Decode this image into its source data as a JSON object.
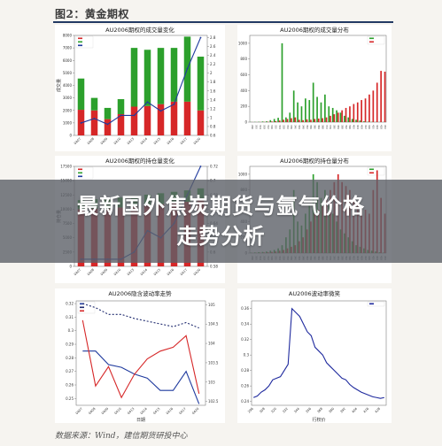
{
  "figure_title": "图2：黄金期权",
  "source": "数据来源：Wind，建信期货研投中心",
  "headline": {
    "line1": "最新国外焦炭期货与氩气价格",
    "line2": "走势分析"
  },
  "chart_data": [
    {
      "id": "volume-by-date",
      "type": "bar",
      "title": "AU2006期权的成交量变化",
      "xlabel": "",
      "ylabel": "成交量",
      "y2label": "",
      "legend": {
        "position": "top-left",
        "labels": [
          "",
          "",
          ""
        ]
      },
      "categories": [
        "0407",
        "0408",
        "0409",
        "0410",
        "0413",
        "0414",
        "0415",
        "0416",
        "0417",
        "0420"
      ],
      "series": [
        {
          "kind": "bar",
          "color": "#d62728",
          "values": [
            2050,
            2000,
            1300,
            1700,
            2300,
            2350,
            2500,
            2700,
            2700,
            2000
          ]
        },
        {
          "kind": "bar",
          "color": "#2ca02c",
          "values": [
            2500,
            1000,
            900,
            1200,
            4700,
            4500,
            4500,
            4300,
            5200,
            4300
          ]
        },
        {
          "kind": "line",
          "axis": "right",
          "color": "#1f3a9e",
          "values": [
            0.88,
            0.98,
            0.85,
            1.05,
            1.05,
            1.35,
            1.15,
            1.3,
            2.1,
            2.8
          ]
        }
      ],
      "yticks": [
        0,
        1000,
        2000,
        3000,
        4000,
        5000,
        6000,
        7000,
        8000
      ],
      "y2ticks": [
        0.6,
        0.8,
        1.0,
        1.2,
        1.4,
        1.6,
        1.8,
        2.0,
        2.2,
        2.4,
        2.6,
        2.8
      ],
      "ylim": [
        0,
        8000
      ],
      "y2lim": [
        0.6,
        2.85
      ]
    },
    {
      "id": "volume-by-strike",
      "type": "bar",
      "title": "AU2006期权的成交量分布",
      "xlabel": "",
      "ylabel": "",
      "legend": {
        "position": "top-right",
        "labels": [
          "",
          ""
        ]
      },
      "categories": [
        "296",
        "300",
        "304",
        "308",
        "312",
        "316",
        "320",
        "324",
        "328",
        "332",
        "336",
        "340",
        "344",
        "348",
        "352",
        "356",
        "360",
        "364",
        "368",
        "372",
        "376",
        "380",
        "384",
        "388",
        "392",
        "396",
        "400",
        "404",
        "408",
        "412",
        "416",
        "420",
        "424",
        "428",
        "432"
      ],
      "series": [
        {
          "color": "#2ca02c",
          "values": [
            2,
            3,
            4,
            8,
            10,
            25,
            40,
            55,
            1000,
            60,
            120,
            400,
            250,
            200,
            300,
            280,
            500,
            320,
            250,
            350,
            200,
            180,
            150,
            120,
            80,
            60,
            40,
            30,
            20,
            10,
            5,
            3,
            2,
            1,
            1
          ]
        },
        {
          "color": "#d62728",
          "values": [
            1,
            1,
            2,
            3,
            5,
            8,
            12,
            20,
            30,
            40,
            50,
            60,
            30,
            25,
            35,
            30,
            40,
            45,
            50,
            60,
            80,
            100,
            120,
            150,
            180,
            200,
            230,
            250,
            280,
            300,
            350,
            400,
            500,
            650,
            640
          ]
        }
      ],
      "yticks": [
        0,
        200,
        400,
        600,
        800,
        1000
      ],
      "ylim": [
        0,
        1100
      ]
    },
    {
      "id": "oi-by-date",
      "type": "bar",
      "title": "AU2006期权的持仓量变化",
      "xlabel": "",
      "ylabel": "持仓量",
      "y2label": "",
      "legend": {
        "position": "top-left",
        "labels": [
          "",
          "",
          ""
        ]
      },
      "categories": [
        "0407",
        "0408",
        "0409",
        "0410",
        "0413",
        "0414",
        "0415",
        "0416",
        "0417",
        "0420"
      ],
      "series": [
        {
          "kind": "bar",
          "color": "#d62728",
          "values": [
            10000,
            10100,
            10100,
            10300,
            10500,
            10700,
            10900,
            11100,
            11300,
            11600
          ]
        },
        {
          "kind": "bar",
          "color": "#2ca02c",
          "values": [
            1600,
            1650,
            1700,
            1750,
            1800,
            1850,
            1900,
            1950,
            2000,
            2050
          ]
        },
        {
          "kind": "line",
          "axis": "right",
          "color": "#1f3a9e",
          "values": [
            0.59,
            0.59,
            0.59,
            0.59,
            0.6,
            0.63,
            0.62,
            0.64,
            0.68,
            0.72
          ]
        }
      ],
      "yticks": [
        0,
        2500,
        5000,
        7500,
        10000,
        12500,
        15000,
        17500
      ],
      "y2ticks": [
        0.58,
        0.6,
        0.62,
        0.64,
        0.66,
        0.68,
        0.7,
        0.72
      ],
      "ylim": [
        0,
        17500
      ],
      "y2lim": [
        0.58,
        0.72
      ]
    },
    {
      "id": "oi-by-strike",
      "type": "bar",
      "title": "AU2006期权的持仓量分布",
      "xlabel": "",
      "ylabel": "",
      "legend": {
        "position": "top-right",
        "labels": [
          "",
          ""
        ]
      },
      "categories": [
        "296",
        "300",
        "304",
        "308",
        "312",
        "316",
        "320",
        "324",
        "328",
        "332",
        "336",
        "340",
        "344",
        "348",
        "352",
        "356",
        "360",
        "364",
        "368",
        "372",
        "376",
        "380",
        "384",
        "388",
        "392",
        "396",
        "400",
        "404",
        "408",
        "412",
        "416",
        "420",
        "424",
        "428",
        "432"
      ],
      "series": [
        {
          "color": "#2ca02c",
          "values": [
            5,
            8,
            12,
            15,
            20,
            30,
            40,
            60,
            100,
            200,
            300,
            800,
            400,
            350,
            500,
            600,
            1000,
            900,
            700,
            800,
            600,
            500,
            400,
            300,
            250,
            200,
            150,
            100,
            80,
            60,
            40,
            30,
            20,
            10,
            5
          ]
        },
        {
          "color": "#d62728",
          "values": [
            2,
            3,
            5,
            8,
            10,
            15,
            20,
            30,
            40,
            60,
            80,
            100,
            150,
            200,
            300,
            400,
            500,
            550,
            600,
            700,
            800,
            900,
            1000,
            900,
            850,
            800,
            700,
            650,
            600,
            550,
            500,
            800,
            1050,
            700,
            500
          ]
        }
      ],
      "yticks": [
        0,
        200,
        400,
        600,
        800,
        1000
      ],
      "ylim": [
        0,
        1100
      ]
    },
    {
      "id": "iv-term",
      "type": "line",
      "title": "AU2006隐含波动率走势",
      "xlabel": "日期",
      "ylabel": "",
      "y2label": "",
      "legend": {
        "position": "top-left",
        "labels": [
          "",
          "",
          ""
        ]
      },
      "categories": [
        "0407",
        "0408",
        "0409",
        "0410",
        "0413",
        "0414",
        "0415",
        "0416",
        "0417",
        "0420"
      ],
      "series": [
        {
          "name": "",
          "axis": "left",
          "color": "#1f3a9e",
          "dash": "",
          "values": [
            0.285,
            0.285,
            0.275,
            0.273,
            0.268,
            0.265,
            0.256,
            0.256,
            0.27,
            0.246
          ]
        },
        {
          "name": "",
          "axis": "left",
          "color": "#1f2a6e",
          "dash": "2,2",
          "values": [
            0.32,
            0.317,
            0.312,
            0.312,
            0.309,
            0.307,
            0.305,
            0.303,
            0.306,
            0.302
          ]
        },
        {
          "name": "",
          "axis": "right",
          "color": "#d62728",
          "dash": "",
          "values": [
            104.6,
            102.9,
            103.4,
            102.6,
            103.2,
            103.6,
            103.8,
            103.9,
            104.2,
            102.7
          ]
        }
      ],
      "yticks": [
        0.25,
        0.26,
        0.27,
        0.28,
        0.29,
        0.3,
        0.31,
        0.32
      ],
      "y2ticks": [
        102.5,
        103.0,
        103.5,
        104.0,
        104.5,
        105.0
      ],
      "ylim": [
        0.245,
        0.322
      ],
      "y2lim": [
        102.4,
        105.1
      ]
    },
    {
      "id": "iv-smile",
      "type": "line",
      "title": "AU2006波动率微笑",
      "xlabel": "行权价",
      "ylabel": "",
      "legend": {
        "position": "top-right",
        "labels": [
          ""
        ]
      },
      "categories": [
        "296",
        "300",
        "304",
        "308",
        "312",
        "316",
        "320",
        "324",
        "328",
        "332",
        "336",
        "340",
        "344",
        "348",
        "352",
        "356",
        "360",
        "364",
        "368",
        "372",
        "376",
        "380",
        "384",
        "388",
        "392",
        "396",
        "400",
        "404",
        "408",
        "412",
        "416",
        "420",
        "424",
        "428",
        "432"
      ],
      "series": [
        {
          "name": "",
          "color": "#1f2a9e",
          "values": [
            0.245,
            0.247,
            0.252,
            0.255,
            0.26,
            0.268,
            0.27,
            0.272,
            0.28,
            0.288,
            0.36,
            0.355,
            0.35,
            0.34,
            0.33,
            0.325,
            0.31,
            0.305,
            0.3,
            0.29,
            0.285,
            0.28,
            0.275,
            0.27,
            0.268,
            0.262,
            0.258,
            0.255,
            0.252,
            0.25,
            0.248,
            0.246,
            0.245,
            0.244,
            0.245
          ]
        }
      ],
      "yticks": [
        0.24,
        0.26,
        0.28,
        0.3,
        0.32,
        0.34,
        0.36
      ],
      "ylim": [
        0.235,
        0.37
      ]
    }
  ]
}
